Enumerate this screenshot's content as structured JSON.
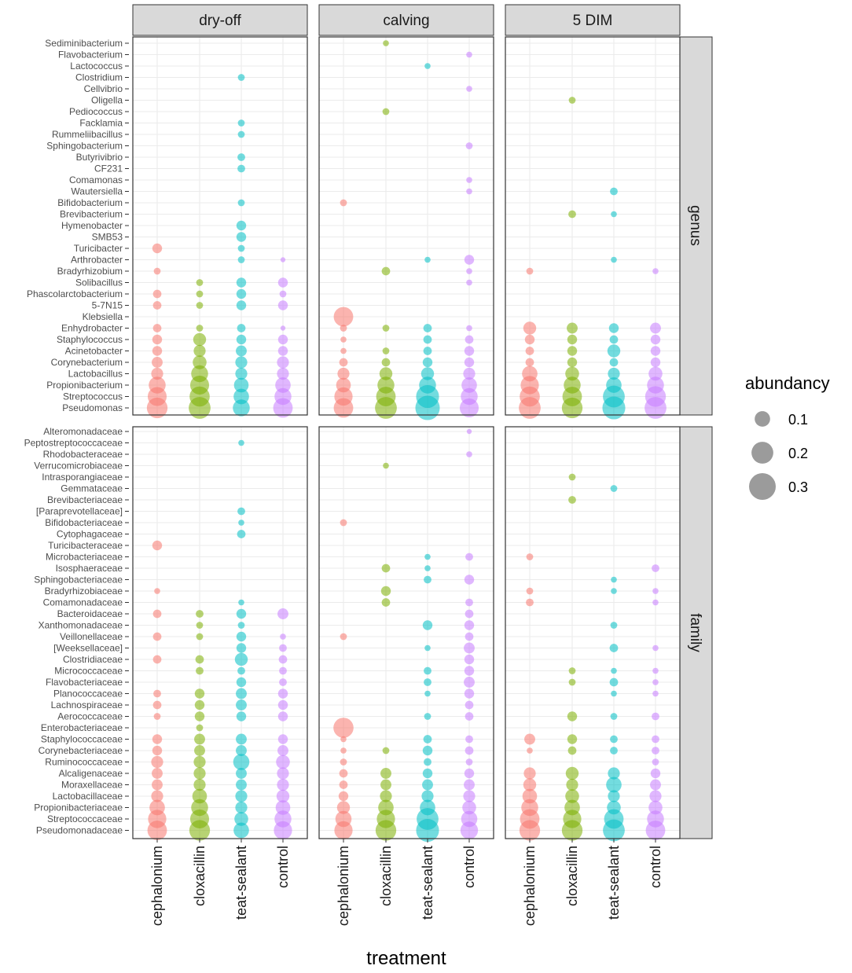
{
  "chart_data": {
    "type": "scatter",
    "title": "",
    "xlabel": "treatment",
    "treatments": [
      "cephalonium",
      "cloxacillin",
      "teat-sealant",
      "control"
    ],
    "periods": [
      "dry-off",
      "calving",
      "5 DIM"
    ],
    "levels": [
      "genus",
      "family"
    ],
    "legend": {
      "title": "abundancy",
      "values": [
        0.1,
        0.2,
        0.3
      ],
      "labels": [
        "0.1",
        "0.2",
        "0.3"
      ],
      "position": "right"
    },
    "colors": {
      "cephalonium": "#F8766D",
      "cloxacillin": "#7CAE00",
      "teat-sealant": "#00BFC4",
      "control": "#C77CFF"
    },
    "rows": {
      "genus": [
        "Sediminibacterium",
        "Flavobacterium",
        "Lactococcus",
        "Clostridium",
        "Cellvibrio",
        "Oligella",
        "Pediococcus",
        "Facklamia",
        "Rummeliibacillus",
        "Sphingobacterium",
        "Butyrivibrio",
        "CF231",
        "Comamonas",
        "Wautersiella",
        "Bifidobacterium",
        "Brevibacterium",
        "Hymenobacter",
        "SMB53",
        "Turicibacter",
        "Arthrobacter",
        "Bradyrhizobium",
        "Solibacillus",
        "Phascolarctobacterium",
        "5-7N15",
        "Klebsiella",
        "Enhydrobacter",
        "Staphylococcus",
        "Acinetobacter",
        "Corynebacterium",
        "Lactobacillus",
        "Propionibacterium",
        "Streptococcus",
        "Pseudomonas"
      ],
      "family": [
        "Alteromonadaceae",
        "Peptostreptococcaceae",
        "Rhodobacteraceae",
        "Verrucomicrobiaceae",
        "Intrasporangiaceae",
        "Gemmataceae",
        "Brevibacteriaceae",
        "[Paraprevotellaceae]",
        "Bifidobacteriaceae",
        "Cytophagaceae",
        "Turicibacteraceae",
        "Microbacteriaceae",
        "Isosphaeraceae",
        "Sphingobacteriaceae",
        "Bradyrhizobiaceae",
        "Comamonadaceae",
        "Bacteroidaceae",
        "Xanthomonadaceae",
        "Veillonellaceae",
        "[Weeksellaceae]",
        "Clostridiaceae",
        "Micrococcaceae",
        "Flavobacteriaceae",
        "Planococcaceae",
        "Lachnospiraceae",
        "Aerococcaceae",
        "Enterobacteriaceae",
        "Staphylococcaceae",
        "Corynebacteriaceae",
        "Ruminococcaceae",
        "Alcaligenaceae",
        "Moraxellaceae",
        "Lactobacillaceae",
        "Propionibacteriaceae",
        "Streptococcaceae",
        "Pseudomonadaceae"
      ]
    },
    "abundance": {
      "genus": {
        "dry-off": {
          "cephalonium": {
            "Turicibacter": 0.04,
            "Bradyrhizobium": 0.02,
            "Phascolarctobacterium": 0.03,
            "5-7N15": 0.03,
            "Enhydrobacter": 0.03,
            "Staphylococcus": 0.04,
            "Acinetobacter": 0.04,
            "Corynebacterium": 0.05,
            "Lactobacillus": 0.06,
            "Propionibacterium": 0.12,
            "Streptococcus": 0.15,
            "Pseudomonas": 0.18
          },
          "cloxacillin": {
            "Solibacillus": 0.02,
            "Phascolarctobacterium": 0.02,
            "5-7N15": 0.02,
            "Enhydrobacter": 0.02,
            "Staphylococcus": 0.07,
            "Acinetobacter": 0.06,
            "Corynebacterium": 0.08,
            "Lactobacillus": 0.12,
            "Propionibacterium": 0.15,
            "Streptococcus": 0.17,
            "Pseudomonas": 0.2
          },
          "teat-sealant": {
            "Clostridium": 0.02,
            "Facklamia": 0.02,
            "Rummeliibacillus": 0.02,
            "Butyrivibrio": 0.025,
            "CF231": 0.025,
            "Bifidobacterium": 0.02,
            "Hymenobacter": 0.04,
            "SMB53": 0.04,
            "Turicibacter": 0.02,
            "Arthrobacter": 0.02,
            "Solibacillus": 0.04,
            "Phascolarctobacterium": 0.04,
            "5-7N15": 0.04,
            "Enhydrobacter": 0.03,
            "Staphylococcus": 0.04,
            "Acinetobacter": 0.05,
            "Corynebacterium": 0.06,
            "Lactobacillus": 0.06,
            "Propionibacterium": 0.09,
            "Streptococcus": 0.1,
            "Pseudomonas": 0.12
          },
          "control": {
            "Arthrobacter": 0.01,
            "Solibacillus": 0.04,
            "Phascolarctobacterium": 0.02,
            "5-7N15": 0.04,
            "Enhydrobacter": 0.01,
            "Staphylococcus": 0.04,
            "Acinetobacter": 0.04,
            "Corynebacterium": 0.06,
            "Lactobacillus": 0.06,
            "Propionibacterium": 0.1,
            "Streptococcus": 0.12,
            "Pseudomonas": 0.16
          }
        },
        "calving": {
          "cephalonium": {
            "Bifidobacterium": 0.02,
            "Klebsiella": 0.16,
            "Enhydrobacter": 0.02,
            "Staphylococcus": 0.015,
            "Acinetobacter": 0.015,
            "Corynebacterium": 0.03,
            "Lactobacillus": 0.06,
            "Propionibacterium": 0.09,
            "Streptococcus": 0.14,
            "Pseudomonas": 0.16
          },
          "cloxacillin": {
            "Sediminibacterium": 0.015,
            "Pediococcus": 0.02,
            "Bradyrhizobium": 0.03,
            "Enhydrobacter": 0.02,
            "Acinetobacter": 0.02,
            "Corynebacterium": 0.03,
            "Lactobacillus": 0.07,
            "Propionibacterium": 0.12,
            "Streptococcus": 0.16,
            "Pseudomonas": 0.2
          },
          "teat-sealant": {
            "Lactococcus": 0.015,
            "Arthrobacter": 0.015,
            "Enhydrobacter": 0.03,
            "Staphylococcus": 0.03,
            "Acinetobacter": 0.03,
            "Corynebacterium": 0.04,
            "Lactobacillus": 0.07,
            "Propionibacterium": 0.12,
            "Streptococcus": 0.22,
            "Pseudomonas": 0.25
          },
          "control": {
            "Flavobacterium": 0.015,
            "Cellvibrio": 0.015,
            "Sphingobacterium": 0.02,
            "Comamonas": 0.015,
            "Wautersiella": 0.015,
            "Arthrobacter": 0.04,
            "Bradyrhizobium": 0.015,
            "Solibacillus": 0.015,
            "Enhydrobacter": 0.015,
            "Staphylococcus": 0.03,
            "Acinetobacter": 0.04,
            "Corynebacterium": 0.04,
            "Lactobacillus": 0.06,
            "Propionibacterium": 0.1,
            "Streptococcus": 0.12,
            "Pseudomonas": 0.15
          }
        },
        "5 DIM": {
          "cephalonium": {
            "Bradyrhizobium": 0.02,
            "Enhydrobacter": 0.07,
            "Staphylococcus": 0.04,
            "Acinetobacter": 0.03,
            "Corynebacterium": 0.03,
            "Lactobacillus": 0.1,
            "Propionibacterium": 0.14,
            "Streptococcus": 0.17,
            "Pseudomonas": 0.2
          },
          "cloxacillin": {
            "Oligella": 0.02,
            "Brevibacterium": 0.025,
            "Enhydrobacter": 0.05,
            "Staphylococcus": 0.04,
            "Acinetobacter": 0.04,
            "Corynebacterium": 0.04,
            "Lactobacillus": 0.08,
            "Propionibacterium": 0.12,
            "Streptococcus": 0.16,
            "Pseudomonas": 0.18
          },
          "teat-sealant": {
            "Wautersiella": 0.025,
            "Brevibacterium": 0.015,
            "Arthrobacter": 0.015,
            "Enhydrobacter": 0.04,
            "Staphylococcus": 0.03,
            "Acinetobacter": 0.07,
            "Corynebacterium": 0.03,
            "Lactobacillus": 0.06,
            "Propionibacterium": 0.1,
            "Streptococcus": 0.2,
            "Pseudomonas": 0.22
          },
          "control": {
            "Bradyrhizobium": 0.015,
            "Enhydrobacter": 0.05,
            "Staphylococcus": 0.04,
            "Acinetobacter": 0.04,
            "Corynebacterium": 0.04,
            "Lactobacillus": 0.08,
            "Propionibacterium": 0.12,
            "Streptococcus": 0.18,
            "Pseudomonas": 0.2
          }
        }
      },
      "family": {
        "dry-off": {
          "cephalonium": {
            "Turicibacteraceae": 0.04,
            "Bradyrhizobiaceae": 0.015,
            "Bacteroidaceae": 0.03,
            "Veillonellaceae": 0.03,
            "Clostridiaceae": 0.03,
            "Planococcaceae": 0.025,
            "Lachnospiraceae": 0.03,
            "Aerococcaceae": 0.02,
            "Staphylococcaceae": 0.04,
            "Corynebacteriaceae": 0.04,
            "Ruminococcaceae": 0.06,
            "Alcaligenaceae": 0.05,
            "Moraxellaceae": 0.05,
            "Lactobacillaceae": 0.06,
            "Propionibacteriaceae": 0.1,
            "Streptococcaceae": 0.14,
            "Pseudomonadaceae": 0.16
          },
          "cloxacillin": {
            "Bacteroidaceae": 0.025,
            "Xanthomonadaceae": 0.02,
            "Veillonellaceae": 0.02,
            "Clostridiaceae": 0.03,
            "Micrococcaceae": 0.025,
            "Planococcaceae": 0.04,
            "Lachnospiraceae": 0.04,
            "Aerococcaceae": 0.04,
            "Enterobacteriaceae": 0.02,
            "Staphylococcaceae": 0.05,
            "Corynebacteriaceae": 0.05,
            "Ruminococcaceae": 0.06,
            "Alcaligenaceae": 0.06,
            "Moraxellaceae": 0.06,
            "Lactobacillaceae": 0.09,
            "Propionibacteriaceae": 0.12,
            "Streptococcaceae": 0.15,
            "Pseudomonadaceae": 0.18
          },
          "teat-sealant": {
            "Peptostreptococcaceae": 0.015,
            "[Paraprevotellaceae]": 0.025,
            "Bifidobacteriaceae": 0.015,
            "Cytophagaceae": 0.03,
            "Comamonadaceae": 0.015,
            "Bacteroidaceae": 0.04,
            "Xanthomonadaceae": 0.02,
            "Veillonellaceae": 0.04,
            "[Weeksellaceae]": 0.04,
            "Clostridiaceae": 0.07,
            "Micrococcaceae": 0.025,
            "Flavobacteriaceae": 0.04,
            "Planococcaceae": 0.05,
            "Lachnospiraceae": 0.05,
            "Aerococcaceae": 0.04,
            "Staphylococcaceae": 0.05,
            "Corynebacteriaceae": 0.05,
            "Ruminococcaceae": 0.11,
            "Alcaligenaceae": 0.05,
            "Moraxellaceae": 0.05,
            "Lactobacillaceae": 0.06,
            "Propionibacteriaceae": 0.06,
            "Streptococcaceae": 0.08,
            "Pseudomonadaceae": 0.1
          },
          "control": {
            "Bacteroidaceae": 0.05,
            "Veillonellaceae": 0.015,
            "[Weeksellaceae]": 0.025,
            "Clostridiaceae": 0.03,
            "Micrococcaceae": 0.025,
            "Flavobacteriaceae": 0.025,
            "Planococcaceae": 0.04,
            "Lachnospiraceae": 0.04,
            "Aerococcaceae": 0.04,
            "Staphylococcaceae": 0.04,
            "Corynebacteriaceae": 0.05,
            "Ruminococcaceae": 0.08,
            "Alcaligenaceae": 0.06,
            "Moraxellaceae": 0.06,
            "Lactobacillaceae": 0.07,
            "Propionibacteriaceae": 0.09,
            "Streptococcaceae": 0.12,
            "Pseudomonadaceae": 0.14
          }
        },
        "calving": {
          "cephalonium": {
            "Bifidobacteriaceae": 0.02,
            "Veillonellaceae": 0.02,
            "Enterobacteriaceae": 0.17,
            "Staphylococcaceae": 0.015,
            "Corynebacteriaceae": 0.015,
            "Ruminococcaceae": 0.02,
            "Alcaligenaceae": 0.03,
            "Moraxellaceae": 0.03,
            "Lactobacillaceae": 0.04,
            "Propionibacteriaceae": 0.07,
            "Streptococcaceae": 0.11,
            "Pseudomonadaceae": 0.14
          },
          "cloxacillin": {
            "Verrucomicrobiaceae": 0.015,
            "Isosphaeraceae": 0.03,
            "Bradyrhizobiaceae": 0.04,
            "Comamonadaceae": 0.03,
            "Corynebacteriaceae": 0.02,
            "Alcaligenaceae": 0.05,
            "Moraxellaceae": 0.05,
            "Lactobacillaceae": 0.06,
            "Propionibacteriaceae": 0.1,
            "Streptococcaceae": 0.14,
            "Pseudomonadaceae": 0.18
          },
          "teat-sealant": {
            "Microbacteriaceae": 0.015,
            "Isosphaeraceae": 0.015,
            "Sphingobacteriaceae": 0.025,
            "Xanthomonadaceae": 0.04,
            "[Weeksellaceae]": 0.015,
            "Micrococcaceae": 0.025,
            "Flavobacteriaceae": 0.025,
            "Planococcaceae": 0.015,
            "Aerococcaceae": 0.02,
            "Staphylococcaceae": 0.03,
            "Corynebacteriaceae": 0.04,
            "Ruminococcaceae": 0.025,
            "Alcaligenaceae": 0.04,
            "Moraxellaceae": 0.05,
            "Lactobacillaceae": 0.06,
            "Propionibacteriaceae": 0.1,
            "Streptococcaceae": 0.2,
            "Pseudomonadaceae": 0.22
          },
          "control": {
            "Alteromonadaceae": 0.01,
            "Rhodobacteraceae": 0.015,
            "Microbacteriaceae": 0.025,
            "Sphingobacteriaceae": 0.04,
            "Comamonadaceae": 0.025,
            "Bacteroidaceae": 0.03,
            "Xanthomonadaceae": 0.04,
            "Veillonellaceae": 0.03,
            "[Weeksellaceae]": 0.05,
            "Clostridiaceae": 0.04,
            "Micrococcaceae": 0.04,
            "Flavobacteriaceae": 0.05,
            "Planococcaceae": 0.04,
            "Lachnospiraceae": 0.03,
            "Aerococcaceae": 0.03,
            "Staphylococcaceae": 0.025,
            "Corynebacteriaceae": 0.03,
            "Ruminococcaceae": 0.02,
            "Alcaligenaceae": 0.04,
            "Moraxellaceae": 0.05,
            "Lactobacillaceae": 0.06,
            "Propionibacteriaceae": 0.08,
            "Streptococcaceae": 0.11,
            "Pseudomonadaceae": 0.13
          }
        },
        "5 DIM": {
          "cephalonium": {
            "Microbacteriaceae": 0.02,
            "Bradyrhizobiaceae": 0.02,
            "Comamonadaceae": 0.025,
            "Staphylococcaceae": 0.05,
            "Corynebacteriaceae": 0.015,
            "Alcaligenaceae": 0.06,
            "Moraxellaceae": 0.07,
            "Lactobacillaceae": 0.09,
            "Propionibacteriaceae": 0.12,
            "Streptococcaceae": 0.16,
            "Pseudomonadaceae": 0.18
          },
          "cloxacillin": {
            "Intrasporangiaceae": 0.02,
            "Brevibacteriaceae": 0.025,
            "Micrococcaceae": 0.02,
            "Flavobacteriaceae": 0.02,
            "Aerococcaceae": 0.04,
            "Staphylococcaceae": 0.04,
            "Corynebacteriaceae": 0.03,
            "Alcaligenaceae": 0.07,
            "Moraxellaceae": 0.06,
            "Lactobacillaceae": 0.08,
            "Propionibacteriaceae": 0.1,
            "Streptococcaceae": 0.14,
            "Pseudomonadaceae": 0.18
          },
          "teat-sealant": {
            "Gemmataceae": 0.02,
            "Sphingobacteriaceae": 0.015,
            "Bradyrhizobiaceae": 0.015,
            "Xanthomonadaceae": 0.02,
            "[Weeksellaceae]": 0.03,
            "Micrococcaceae": 0.015,
            "Flavobacteriaceae": 0.03,
            "Planococcaceae": 0.015,
            "Aerococcaceae": 0.02,
            "Staphylococcaceae": 0.025,
            "Corynebacteriaceae": 0.025,
            "Alcaligenaceae": 0.06,
            "Moraxellaceae": 0.1,
            "Lactobacillaceae": 0.06,
            "Propionibacteriaceae": 0.08,
            "Streptococcaceae": 0.16,
            "Pseudomonadaceae": 0.2
          },
          "control": {
            "Isosphaeraceae": 0.025,
            "Bradyrhizobiaceae": 0.015,
            "Comamonadaceae": 0.015,
            "[Weeksellaceae]": 0.015,
            "Micrococcaceae": 0.015,
            "Flavobacteriaceae": 0.015,
            "Planococcaceae": 0.015,
            "Aerococcaceae": 0.025,
            "Staphylococcaceae": 0.025,
            "Corynebacteriaceae": 0.025,
            "Ruminococcaceae": 0.02,
            "Alcaligenaceae": 0.04,
            "Moraxellaceae": 0.05,
            "Lactobacillaceae": 0.06,
            "Propionibacteriaceae": 0.08,
            "Streptococcaceae": 0.12,
            "Pseudomonadaceae": 0.16
          }
        }
      }
    }
  }
}
